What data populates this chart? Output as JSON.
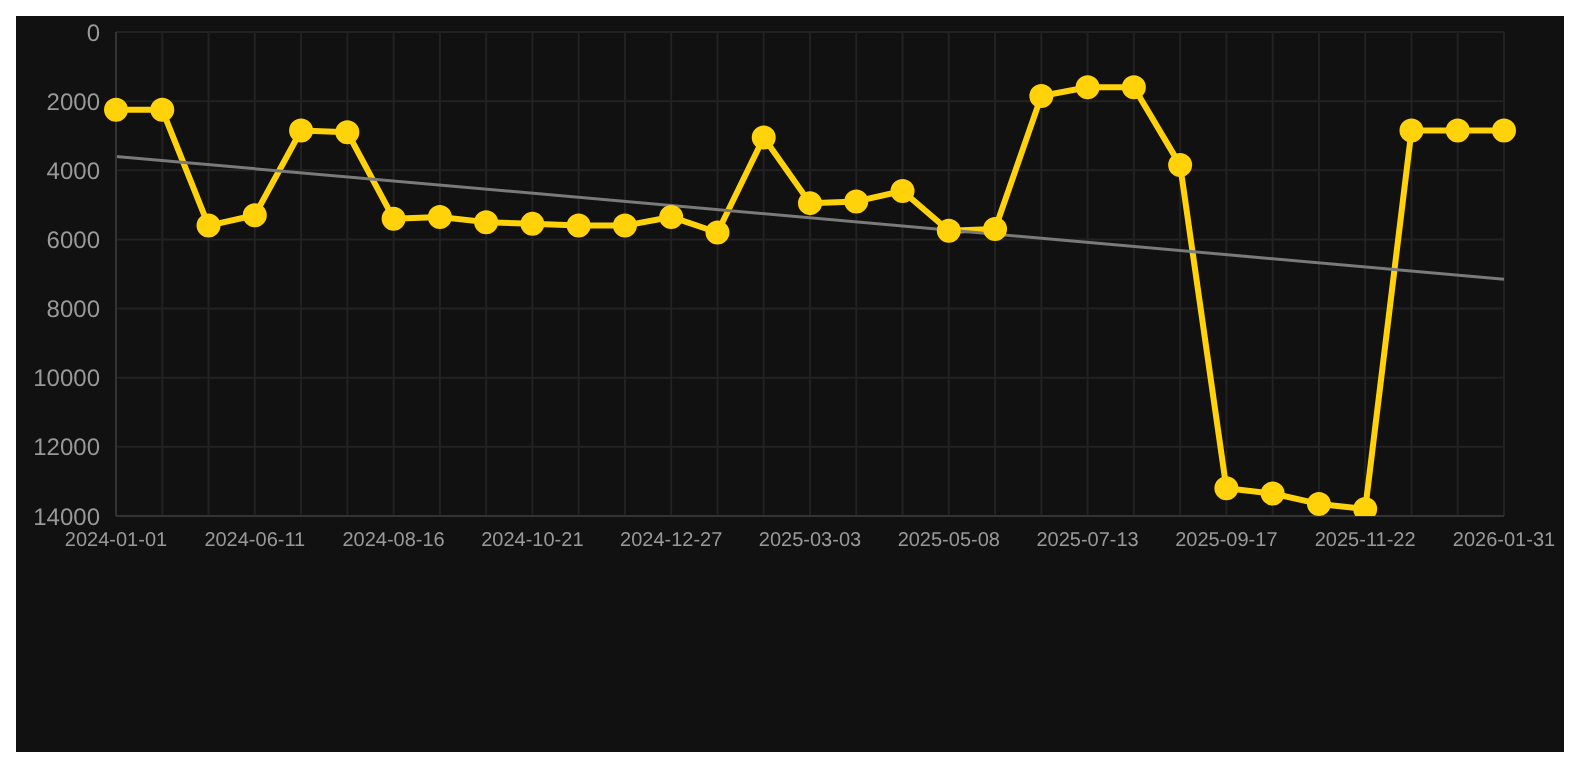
{
  "chart_data": {
    "type": "line",
    "categories": [
      "2024-01-01",
      null,
      null,
      "2024-06-11",
      null,
      null,
      "2024-08-16",
      null,
      null,
      "2024-10-21",
      null,
      null,
      "2024-12-27",
      null,
      null,
      "2025-03-03",
      null,
      null,
      "2025-05-08",
      null,
      null,
      "2025-07-13",
      null,
      null,
      "2025-09-17",
      null,
      null,
      "2025-11-22",
      null,
      null,
      "2026-01-31"
    ],
    "series": [
      {
        "color": "#ffd20a",
        "marker": "circle",
        "values": [
          2250,
          2250,
          5600,
          5300,
          2850,
          2900,
          5400,
          5350,
          5500,
          5550,
          5600,
          5600,
          5350,
          5800,
          3050,
          4950,
          4900,
          4600,
          5750,
          5700,
          1850,
          1600,
          1600,
          3850,
          13200,
          13350,
          13650,
          13800,
          2850,
          2850,
          2850
        ]
      },
      {
        "color": "#7a7a7a",
        "marker": "none",
        "values": [
          3600,
          null,
          null,
          null,
          null,
          null,
          null,
          null,
          null,
          null,
          null,
          null,
          null,
          null,
          null,
          null,
          null,
          null,
          null,
          null,
          null,
          null,
          null,
          null,
          null,
          null,
          null,
          null,
          null,
          null,
          7150
        ]
      }
    ],
    "ylim": [
      14000,
      0
    ],
    "yticks": [
      0,
      2000,
      4000,
      6000,
      8000,
      10000,
      12000,
      14000
    ],
    "grid": true
  }
}
